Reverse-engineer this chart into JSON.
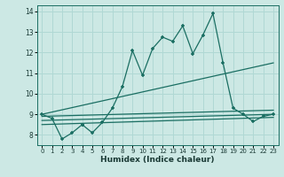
{
  "xlabel": "Humidex (Indice chaleur)",
  "xlim": [
    -0.5,
    23.5
  ],
  "ylim": [
    7.5,
    14.3
  ],
  "bg_color": "#cce8e4",
  "grid_color": "#b0d8d4",
  "line_color": "#1a6e62",
  "main_x": [
    0,
    1,
    2,
    3,
    4,
    4,
    5,
    6,
    7,
    8,
    9,
    10,
    11,
    12,
    13,
    14,
    15,
    16,
    17,
    18,
    19,
    20,
    21,
    22,
    23
  ],
  "main_y": [
    9.0,
    8.8,
    7.8,
    8.1,
    8.5,
    8.5,
    8.1,
    8.6,
    9.3,
    10.35,
    12.1,
    10.9,
    12.2,
    12.75,
    12.55,
    13.3,
    11.95,
    12.85,
    13.9,
    11.5,
    9.3,
    9.0,
    8.65,
    8.9,
    9.0
  ],
  "trend1_x": [
    0,
    23
  ],
  "trend1_y": [
    9.0,
    11.5
  ],
  "trend2_x": [
    0,
    23
  ],
  "trend2_y": [
    8.9,
    9.2
  ],
  "trend3_x": [
    0,
    23
  ],
  "trend3_y": [
    8.7,
    9.0
  ],
  "trend4_x": [
    0,
    23
  ],
  "trend4_y": [
    8.5,
    8.85
  ],
  "xticks": [
    0,
    1,
    2,
    3,
    4,
    5,
    6,
    7,
    8,
    9,
    10,
    11,
    12,
    13,
    14,
    15,
    16,
    17,
    18,
    19,
    20,
    21,
    22,
    23
  ],
  "yticks": [
    8,
    9,
    10,
    11,
    12,
    13,
    14
  ]
}
